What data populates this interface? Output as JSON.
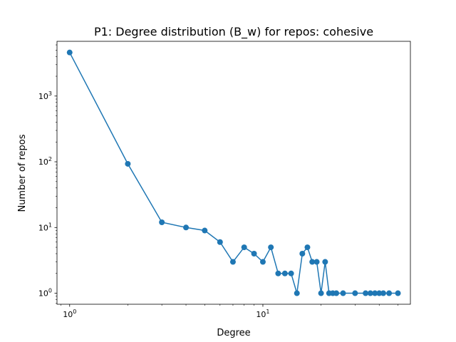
{
  "chart_data": {
    "type": "line",
    "title": "P1: Degree distribution (B_w) for repos: cohesive",
    "xlabel": "Degree",
    "ylabel": "Number of repos",
    "xscale": "log",
    "yscale": "log",
    "xlim": [
      0.86,
      58
    ],
    "ylim": [
      0.68,
      6800
    ],
    "grid": false,
    "series": [
      {
        "color": "#1f77b4",
        "marker": "circle",
        "x": [
          1,
          2,
          3,
          4,
          5,
          6,
          7,
          8,
          9,
          10,
          11,
          12,
          13,
          14,
          15,
          16,
          17,
          18,
          19,
          20,
          21,
          22,
          23,
          24,
          26,
          30,
          34,
          36,
          38,
          40,
          42,
          45,
          50
        ],
        "y": [
          4600,
          93,
          12,
          10,
          9,
          6,
          3,
          5,
          4,
          3,
          5,
          2,
          2,
          2,
          1,
          4,
          5,
          3,
          3,
          1,
          3,
          1,
          1,
          1,
          1,
          1,
          1,
          1,
          1,
          1,
          1,
          1,
          1
        ]
      }
    ],
    "x_ticks": [
      {
        "value": 1,
        "base": "10",
        "exp": "0"
      },
      {
        "value": 10,
        "base": "10",
        "exp": "1"
      }
    ],
    "y_ticks": [
      {
        "value": 1,
        "base": "10",
        "exp": "0"
      },
      {
        "value": 10,
        "base": "10",
        "exp": "1"
      },
      {
        "value": 100,
        "base": "10",
        "exp": "2"
      },
      {
        "value": 1000,
        "base": "10",
        "exp": "3"
      }
    ]
  }
}
